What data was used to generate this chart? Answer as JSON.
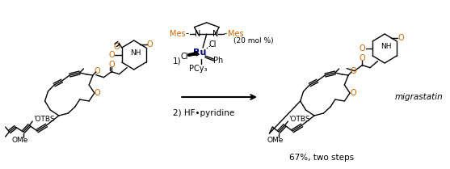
{
  "background_color": "#ffffff",
  "text_color": "#000000",
  "dark_red_color": "#8B0000",
  "blue_color": "#000080",
  "orange_color": "#CC6600",
  "yield_text": "67%, two steps",
  "product_name": "migrastatin",
  "reagent1": "1)",
  "reagent2": "2) HF•pyridine",
  "mol_pct": "(20 mol %)",
  "Mes_left": "Mes",
  "Mes_right": "N–Mes",
  "Ru_label": "Ru",
  "Cl1": "Cl",
  "Cl2": "Cl",
  "Ph_label": "Ph",
  "PCy3_label": "PCy₃",
  "OTBS_left": "'OTBS",
  "OMe_left": "OMe",
  "OTBS_right": "'OTBS",
  "OMe_right": "OMe",
  "NH_left": "NH",
  "NH_right": "NH"
}
